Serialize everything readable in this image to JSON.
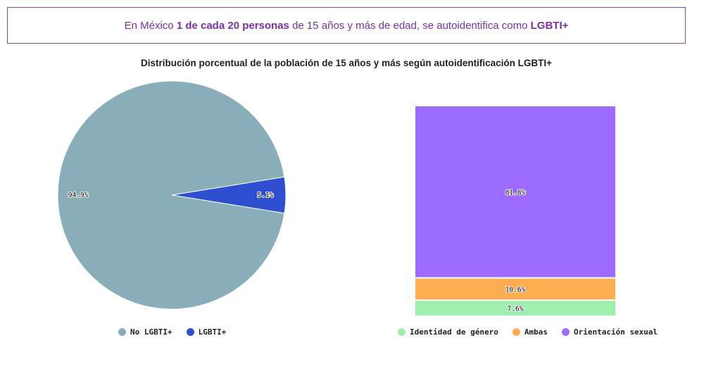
{
  "banner": {
    "prefix": "En México ",
    "highlight1": "1 de cada 20 personas",
    "middle": " de 15 años y más de edad, se autoidentifica como ",
    "highlight2": "LGBTI+"
  },
  "chart_data": [
    {
      "type": "pie",
      "title": "Distribución porcentual de la población de 15 años y más según autoidentificación LGBTI+",
      "categories": [
        "No LGBTI+",
        "LGBTI+"
      ],
      "values": [
        94.9,
        5.1
      ],
      "labels": [
        "94.9%",
        "5.1%"
      ],
      "colors": [
        "#8aaeb9",
        "#2f4fd1"
      ],
      "legend": "bottom"
    },
    {
      "type": "bar",
      "stacked": true,
      "categories": [
        "Identidad de género",
        "Ambas",
        "Orientación sexual"
      ],
      "values": [
        7.6,
        10.6,
        81.8
      ],
      "labels": [
        "7.6%",
        "10.6%",
        "81.8%"
      ],
      "colors": [
        "#9eeeae",
        "#ffad52",
        "#9d6bff"
      ],
      "legend": "bottom"
    }
  ]
}
